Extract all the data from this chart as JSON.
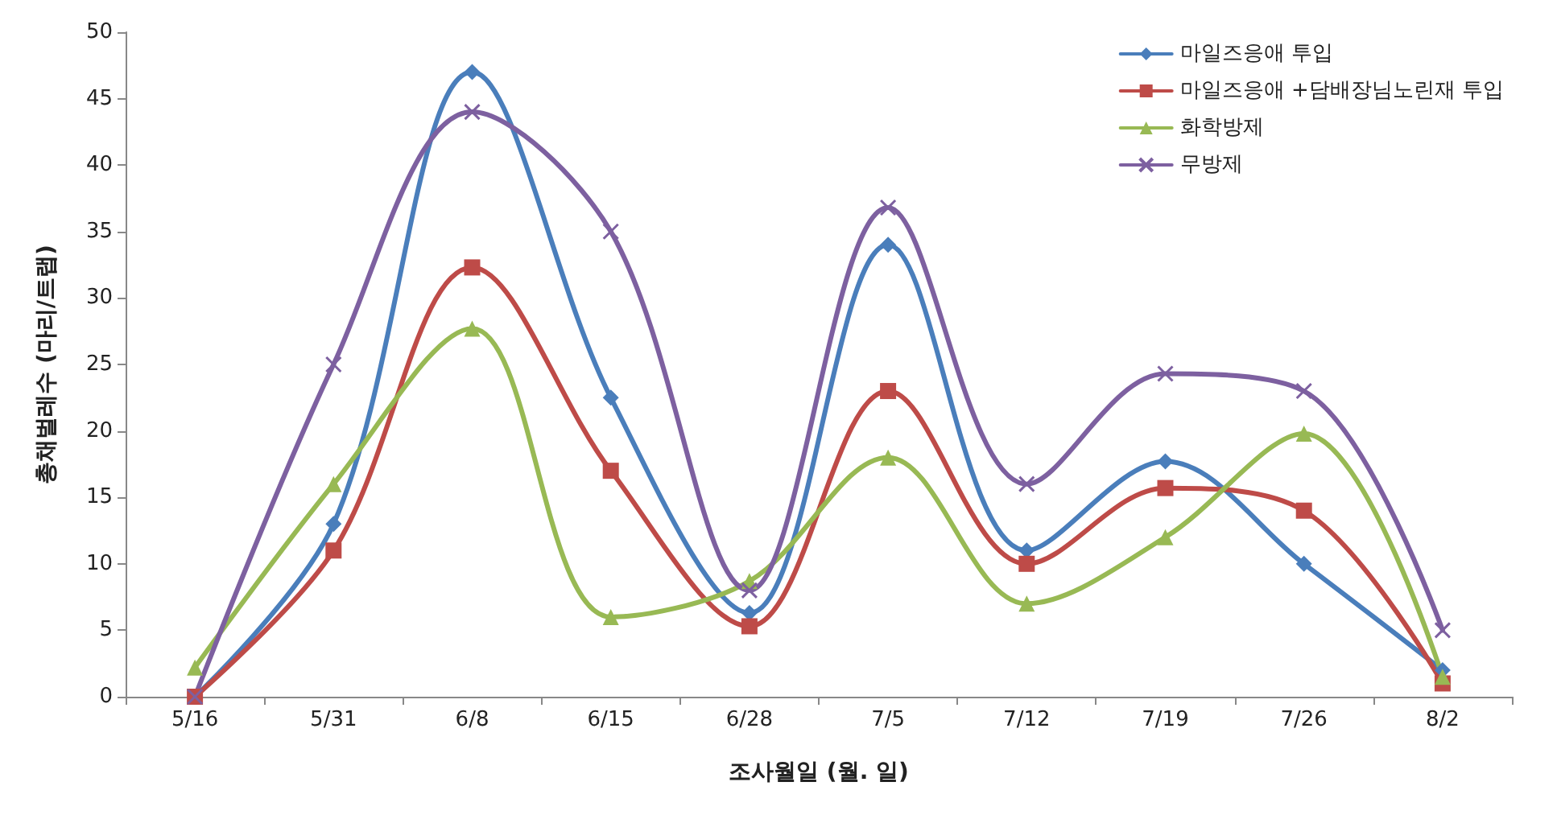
{
  "chart_data": {
    "type": "line",
    "xlabel": "조사월일 (월. 일)",
    "ylabel": "총채벌레수 (마리/트랩)",
    "categories": [
      "5/16",
      "5/31",
      "6/8",
      "6/15",
      "6/28",
      "7/5",
      "7/12",
      "7/19",
      "7/26",
      "8/2"
    ],
    "series": [
      {
        "name": "마일즈응애 투입",
        "color": "#4a7ebb",
        "marker": "diamond",
        "values": [
          0,
          13,
          47,
          22.5,
          6.3,
          34,
          11,
          17.7,
          10,
          2
        ]
      },
      {
        "name": "마일즈응애 +담배장님노린재 투입",
        "color": "#be4b48",
        "marker": "square",
        "values": [
          0,
          11,
          32.3,
          17,
          5.3,
          23,
          10,
          15.7,
          14,
          1
        ]
      },
      {
        "name": "화학방제",
        "color": "#98b954",
        "marker": "triangle",
        "values": [
          2.2,
          16,
          27.7,
          6,
          8.7,
          18,
          7,
          12,
          19.8,
          1.5
        ]
      },
      {
        "name": "무방제",
        "color": "#7d60a0",
        "marker": "cross",
        "values": [
          0,
          25,
          44,
          35,
          8,
          36.8,
          16,
          24.3,
          23,
          5
        ]
      }
    ],
    "ylim": [
      0,
      50
    ],
    "yticks": [
      0,
      5,
      10,
      15,
      20,
      25,
      30,
      35,
      40,
      45,
      50
    ],
    "grid": false,
    "legend": "top right",
    "line_style": "solid"
  }
}
